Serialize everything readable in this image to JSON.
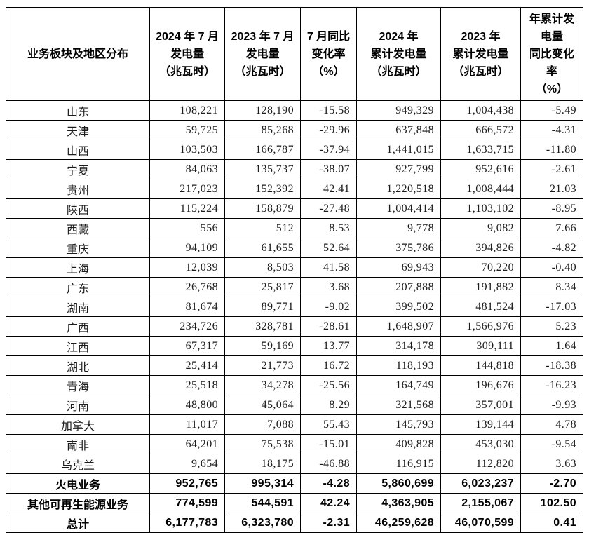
{
  "colors": {
    "background": "#ffffff",
    "border": "#000000",
    "text": "#1c1c1c"
  },
  "table": {
    "columns": [
      "业务板块及地区分布",
      "2024 年 7 月\n发电量\n（兆瓦时）",
      "2023 年 7 月\n发电量\n（兆瓦时）",
      "7 月同比\n变化率\n（%）",
      "2024 年\n累计发电量\n（兆瓦时）",
      "2023 年\n累计发电量\n（兆瓦时）",
      "年累计发\n电量\n同比变化\n率\n（%）"
    ],
    "rows": [
      {
        "bold": false,
        "cells": [
          "山东",
          "108,221",
          "128,190",
          "-15.58",
          "949,329",
          "1,004,438",
          "-5.49"
        ]
      },
      {
        "bold": false,
        "cells": [
          "天津",
          "59,725",
          "85,268",
          "-29.96",
          "637,848",
          "666,572",
          "-4.31"
        ]
      },
      {
        "bold": false,
        "cells": [
          "山西",
          "103,503",
          "166,787",
          "-37.94",
          "1,441,015",
          "1,633,715",
          "-11.80"
        ]
      },
      {
        "bold": false,
        "cells": [
          "宁夏",
          "84,063",
          "135,737",
          "-38.07",
          "927,799",
          "952,616",
          "-2.61"
        ]
      },
      {
        "bold": false,
        "cells": [
          "贵州",
          "217,023",
          "152,392",
          "42.41",
          "1,220,518",
          "1,008,444",
          "21.03"
        ]
      },
      {
        "bold": false,
        "cells": [
          "陕西",
          "115,224",
          "158,879",
          "-27.48",
          "1,004,414",
          "1,103,102",
          "-8.95"
        ]
      },
      {
        "bold": false,
        "cells": [
          "西藏",
          "556",
          "512",
          "8.53",
          "9,778",
          "9,082",
          "7.66"
        ]
      },
      {
        "bold": false,
        "cells": [
          "重庆",
          "94,109",
          "61,655",
          "52.64",
          "375,786",
          "394,826",
          "-4.82"
        ]
      },
      {
        "bold": false,
        "cells": [
          "上海",
          "12,039",
          "8,503",
          "41.58",
          "69,943",
          "70,220",
          "-0.40"
        ]
      },
      {
        "bold": false,
        "cells": [
          "广东",
          "26,768",
          "25,817",
          "3.68",
          "207,888",
          "191,882",
          "8.34"
        ]
      },
      {
        "bold": false,
        "cells": [
          "湖南",
          "81,674",
          "89,771",
          "-9.02",
          "399,502",
          "481,524",
          "-17.03"
        ]
      },
      {
        "bold": false,
        "cells": [
          "广西",
          "234,726",
          "328,781",
          "-28.61",
          "1,648,907",
          "1,566,976",
          "5.23"
        ]
      },
      {
        "bold": false,
        "cells": [
          "江西",
          "67,317",
          "59,169",
          "13.77",
          "314,178",
          "309,111",
          "1.64"
        ]
      },
      {
        "bold": false,
        "cells": [
          "湖北",
          "25,414",
          "21,773",
          "16.72",
          "118,193",
          "144,818",
          "-18.38"
        ]
      },
      {
        "bold": false,
        "cells": [
          "青海",
          "25,518",
          "34,278",
          "-25.56",
          "164,749",
          "196,676",
          "-16.23"
        ]
      },
      {
        "bold": false,
        "cells": [
          "河南",
          "48,800",
          "45,064",
          "8.29",
          "321,568",
          "357,001",
          "-9.93"
        ]
      },
      {
        "bold": false,
        "cells": [
          "加拿大",
          "11,017",
          "7,088",
          "55.43",
          "145,793",
          "139,144",
          "4.78"
        ]
      },
      {
        "bold": false,
        "cells": [
          "南非",
          "64,201",
          "75,538",
          "-15.01",
          "409,828",
          "453,030",
          "-9.54"
        ]
      },
      {
        "bold": false,
        "cells": [
          "乌克兰",
          "9,654",
          "18,175",
          "-46.88",
          "116,915",
          "112,820",
          "3.63"
        ]
      },
      {
        "bold": true,
        "cells": [
          "火电业务",
          "952,765",
          "995,314",
          "-4.28",
          "5,860,699",
          "6,023,237",
          "-2.70"
        ]
      },
      {
        "bold": true,
        "cells": [
          "其他可再生能源业务",
          "774,599",
          "544,591",
          "42.24",
          "4,363,905",
          "2,155,067",
          "102.50"
        ]
      },
      {
        "bold": true,
        "cells": [
          "总计",
          "6,177,783",
          "6,323,780",
          "-2.31",
          "46,259,628",
          "46,070,599",
          "0.41"
        ]
      }
    ]
  }
}
